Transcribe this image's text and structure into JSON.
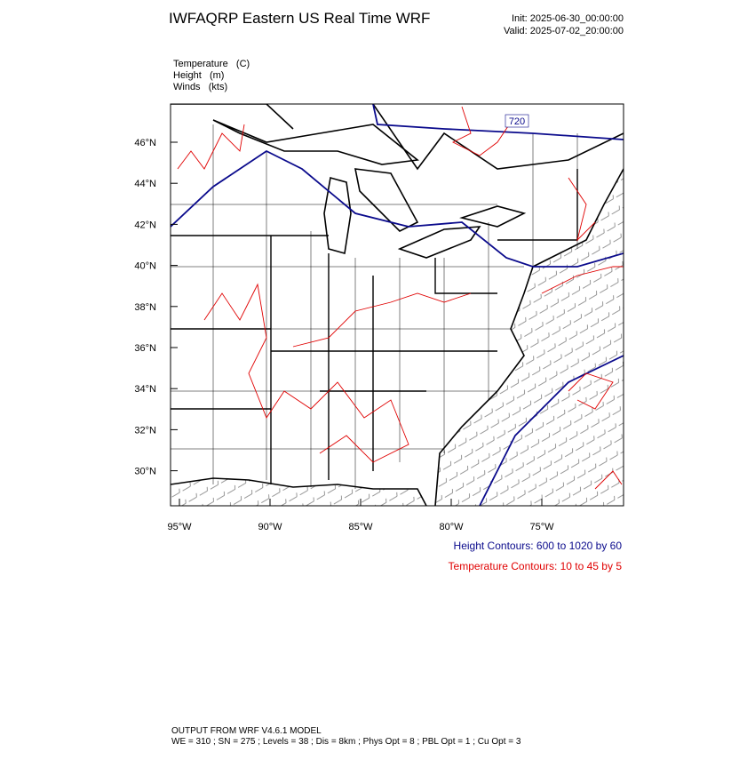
{
  "header": {
    "title": "IWFAQRP Eastern US Real Time WRF",
    "init": "Init: 2025-06-30_00:00:00",
    "valid": "Valid: 2025-07-02_20:00:00"
  },
  "fields": [
    "Temperature   (C)",
    "Height   (m)",
    "Winds   (kts)"
  ],
  "map": {
    "lat_labels": [
      "46°N",
      "44°N",
      "42°N",
      "40°N",
      "38°N",
      "36°N",
      "34°N",
      "32°N",
      "30°N"
    ],
    "lon_labels": [
      "95°W",
      "90°W",
      "85°W",
      "80°W",
      "75°W"
    ],
    "contour_labels": [
      "720"
    ]
  },
  "legend": {
    "height": "Height Contours: 600 to 1020 by 60",
    "temperature": "Temperature Contours: 10 to 45 by 5"
  },
  "footer": {
    "line1": "OUTPUT FROM WRF V4.6.1 MODEL",
    "line2": "WE = 310 ; SN = 275 ; Levels = 38 ; Dis = 8km ; Phys Opt = 8 ; PBL Opt = 1 ; Cu Opt = 3"
  }
}
